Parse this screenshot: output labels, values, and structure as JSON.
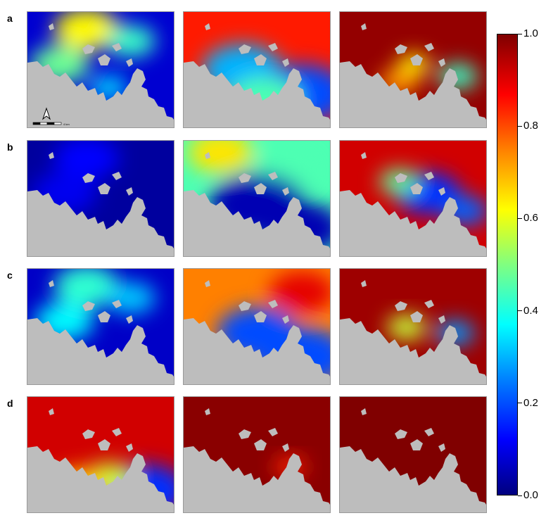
{
  "chart_data": {
    "type": "heatmap",
    "layout": "4x3 grid of map panels with shared colorbar",
    "row_labels": [
      "a",
      "b",
      "c",
      "d"
    ],
    "colormap": "jet",
    "colorbar": {
      "min": 0.0,
      "max": 1.0,
      "ticks": [
        "1.0",
        "0.8",
        "0.6",
        "0.4",
        "0.2",
        "0.0"
      ]
    },
    "land_color": "#bdbdbd",
    "scale_bar_label": "4 km",
    "panels": [
      {
        "row": "a",
        "col": 1,
        "base_level": 0.08,
        "hotspots": [
          [
            0.4,
            0.15,
            0.55,
            0.2
          ],
          [
            0.22,
            0.45,
            0.4,
            0.18
          ],
          [
            0.7,
            0.25,
            0.35,
            0.15
          ],
          [
            0.55,
            0.65,
            0.25,
            0.12
          ]
        ]
      },
      {
        "row": "a",
        "col": 2,
        "base_level": 0.85,
        "hotspots": [
          [
            0.4,
            0.5,
            -0.55,
            0.25
          ],
          [
            0.8,
            0.7,
            -0.65,
            0.28
          ],
          [
            0.55,
            0.75,
            -0.4,
            0.22
          ]
        ]
      },
      {
        "row": "a",
        "col": 3,
        "base_level": 0.98,
        "hotspots": [
          [
            0.8,
            0.55,
            -0.55,
            0.12
          ],
          [
            0.5,
            0.45,
            -0.35,
            0.1
          ],
          [
            0.4,
            0.6,
            -0.25,
            0.12
          ]
        ]
      },
      {
        "row": "b",
        "col": 1,
        "base_level": 0.03,
        "hotspots": [
          [
            0.4,
            0.15,
            0.1,
            0.2
          ],
          [
            0.25,
            0.45,
            0.08,
            0.2
          ]
        ]
      },
      {
        "row": "b",
        "col": 2,
        "base_level": 0.45,
        "hotspots": [
          [
            0.25,
            0.1,
            0.2,
            0.2
          ],
          [
            0.7,
            0.25,
            0.0,
            0.2
          ],
          [
            0.5,
            0.55,
            -0.4,
            0.3
          ],
          [
            0.8,
            0.75,
            -0.4,
            0.25
          ]
        ]
      },
      {
        "row": "b",
        "col": 3,
        "base_level": 0.92,
        "hotspots": [
          [
            0.6,
            0.45,
            -0.75,
            0.2
          ],
          [
            0.85,
            0.6,
            -0.7,
            0.14
          ],
          [
            0.4,
            0.35,
            -0.45,
            0.12
          ]
        ]
      },
      {
        "row": "c",
        "col": 1,
        "base_level": 0.07,
        "hotspots": [
          [
            0.4,
            0.15,
            0.35,
            0.2
          ],
          [
            0.25,
            0.45,
            0.3,
            0.18
          ],
          [
            0.7,
            0.25,
            0.25,
            0.15
          ]
        ]
      },
      {
        "row": "c",
        "col": 2,
        "base_level": 0.75,
        "hotspots": [
          [
            0.8,
            0.2,
            0.15,
            0.2
          ],
          [
            0.5,
            0.55,
            -0.55,
            0.25
          ],
          [
            0.8,
            0.75,
            -0.55,
            0.28
          ]
        ]
      },
      {
        "row": "c",
        "col": 3,
        "base_level": 0.97,
        "hotspots": [
          [
            0.78,
            0.55,
            -0.7,
            0.12
          ],
          [
            0.45,
            0.5,
            -0.4,
            0.12
          ]
        ]
      },
      {
        "row": "d",
        "col": 1,
        "base_level": 0.92,
        "hotspots": [
          [
            0.8,
            0.8,
            -0.75,
            0.25
          ],
          [
            0.55,
            0.7,
            -0.35,
            0.15
          ],
          [
            0.35,
            0.75,
            -0.25,
            0.15
          ]
        ]
      },
      {
        "row": "d",
        "col": 2,
        "base_level": 0.99,
        "hotspots": [
          [
            0.72,
            0.6,
            -0.15,
            0.1
          ]
        ]
      },
      {
        "row": "d",
        "col": 3,
        "base_level": 1.0,
        "hotspots": []
      }
    ]
  }
}
